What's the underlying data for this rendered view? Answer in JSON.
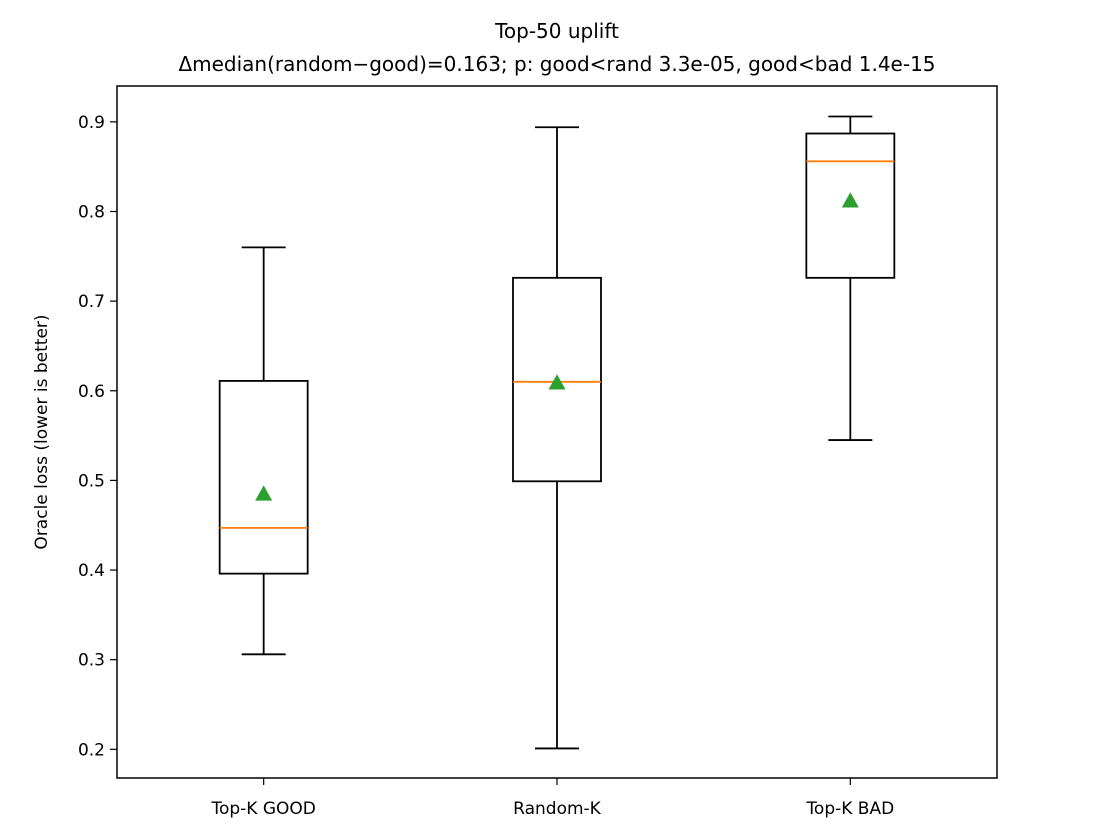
{
  "chart_data": {
    "type": "box",
    "title": "Top-50 uplift",
    "subtitle": "Δmedian(random−good)=0.163;  p: good<rand 3.3e-05, good<bad 1.4e-15",
    "xlabel": "",
    "ylabel": "Oracle loss (lower is better)",
    "ylim": [
      0.168,
      0.94
    ],
    "yticks": [
      0.2,
      0.3,
      0.4,
      0.5,
      0.6,
      0.7,
      0.8,
      0.9
    ],
    "ytick_labels": [
      "0.2",
      "0.3",
      "0.4",
      "0.5",
      "0.6",
      "0.7",
      "0.8",
      "0.9"
    ],
    "grid": false,
    "categories": [
      "Top-K GOOD",
      "Random-K",
      "Top-K BAD"
    ],
    "boxes": [
      {
        "category": "Top-K GOOD",
        "whisker_low": 0.306,
        "q1": 0.396,
        "median": 0.447,
        "q3": 0.611,
        "whisker_high": 0.76,
        "mean": 0.485
      },
      {
        "category": "Random-K",
        "whisker_low": 0.201,
        "q1": 0.499,
        "median": 0.61,
        "q3": 0.726,
        "whisker_high": 0.894,
        "mean": 0.609
      },
      {
        "category": "Top-K BAD",
        "whisker_low": 0.545,
        "q1": 0.726,
        "median": 0.856,
        "q3": 0.887,
        "whisker_high": 0.906,
        "mean": 0.812
      }
    ],
    "colors": {
      "box": "#000000",
      "median": "#ff7f0e",
      "mean": "#2ca02c"
    }
  }
}
